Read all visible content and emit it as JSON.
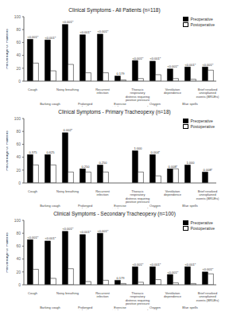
{
  "chart_data": [
    {
      "type": "bar",
      "title": "Clinical Symptoms - All Patients (n=118)",
      "categories": [
        "Cough",
        "Barking cough",
        "Noisy breathing",
        "Prolonged\ninfection",
        "Recurrent\ninfection",
        "Exercise\nintolerance",
        "Thoracic\nrespiratory\ndistress requiring\npositive pressure",
        "Oxygen\ndependence",
        "Ventilation\ndependence",
        "Blue spells",
        "Brief resolved\nunexplained\nevents (BRUEs)"
      ],
      "series": [
        {
          "name": "Preoperative",
          "color": "#000000",
          "values": [
            65,
            64,
            88,
            72,
            73,
            8,
            32,
            31,
            19,
            22,
            22
          ]
        },
        {
          "name": "Postoperative",
          "color": "#ffffff",
          "values": [
            28,
            16,
            26,
            13,
            13,
            2,
            4,
            10,
            4,
            3,
            17
          ]
        }
      ],
      "annotations": [
        "<0.001*",
        "<0.001*",
        "<0.001*",
        "<0.001*",
        "<0.001*",
        "0.179",
        "<0.001*",
        "<0.001*",
        "<0.001*",
        "<0.001*",
        "<0.001*"
      ],
      "ylabel": "Percentage of Patients",
      "ylim": [
        0,
        100
      ],
      "yticks": [
        0,
        20,
        40,
        60,
        80,
        100
      ],
      "legend": "upper right",
      "grid": false
    },
    {
      "type": "bar",
      "title": "Clinical Symptoms - Primary Tracheopexy (n=18)",
      "categories": [
        "Cough",
        "Barking cough",
        "Noisy breathing",
        "Prolonged\ninfection",
        "Recurrent\ninfection",
        "Exercise\nintolerance",
        "Thoracic\nrespiratory\ndistress requiring\npositive pressure",
        "Oxygen\ndependence",
        "Ventilation\ndependence",
        "Blue spells",
        "Brief resolved\nunexplained\nevents (BRUEs)"
      ],
      "series": [
        {
          "name": "Preoperative",
          "color": "#000000",
          "values": [
            44,
            44,
            78,
            22,
            28,
            0,
            50,
            44,
            22,
            28,
            17
          ]
        },
        {
          "name": "Postoperative",
          "color": "#ffffff",
          "values": [
            28,
            28,
            17,
            17,
            17,
            0,
            17,
            11,
            22,
            0,
            0
          ]
        }
      ],
      "annotations": [
        "0.375",
        "0.625",
        "0.002*",
        "0.250",
        "0.250",
        "1.000",
        "0.004*",
        "0.008*",
        "1.000",
        "0.008*",
        "0.008*"
      ],
      "ylabel": "Percentage of Patients",
      "ylim": [
        0,
        100
      ],
      "yticks": [
        0,
        20,
        40,
        60,
        80,
        100
      ],
      "legend": "upper right",
      "grid": false
    },
    {
      "type": "bar",
      "title": "Clinical Symptoms - Secondary Tracheopexy (n=100)",
      "categories": [
        "Cough",
        "Barking cough",
        "Noisy breathing",
        "Prolonged\ninfection",
        "Recurrent\ninfection",
        "Exercise\nintolerance",
        "Thoracic\nrespiratory\ndistress requiring\npositive pressure",
        "Oxygen\ndependence",
        "Ventilation\ndependence",
        "Blue spells",
        "Brief resolved\nunexplained\nevents (BRUEs)"
      ],
      "series": [
        {
          "name": "Preoperative",
          "color": "#000000",
          "values": [
            70,
            68,
            83,
            78,
            80,
            7,
            28,
            28,
            16,
            28,
            20
          ]
        },
        {
          "name": "Postoperative",
          "color": "#ffffff",
          "values": [
            24,
            10,
            25,
            5,
            7,
            2,
            4,
            8,
            3,
            2,
            17
          ]
        }
      ],
      "annotations": [
        "<0.001*",
        "<0.001*",
        "<0.001*",
        "<0.001*",
        "<0.001*",
        "0.179",
        "<0.001*",
        "<0.001*",
        "<0.001*",
        "<0.001*",
        "<0.001*"
      ],
      "ylabel": "Percentage of Patients",
      "ylim": [
        0,
        100
      ],
      "yticks": [
        0,
        20,
        40,
        60,
        80,
        100
      ],
      "legend": "upper right",
      "grid": false
    }
  ]
}
